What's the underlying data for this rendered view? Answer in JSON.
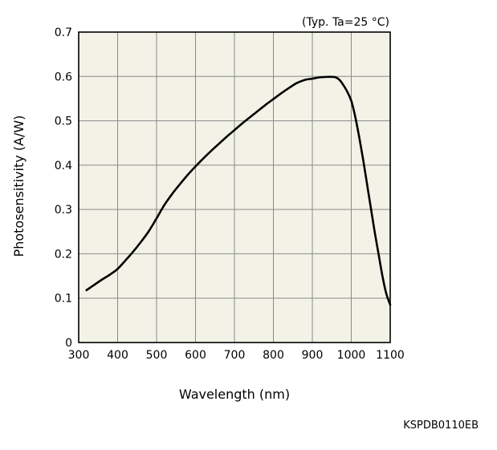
{
  "chart_data": {
    "type": "line",
    "title": "",
    "condition_note": "(Typ. Ta=25 °C)",
    "xlabel": "Wavelength (nm)",
    "ylabel": "Photosensitivity (A/W)",
    "xlim": [
      300,
      1100
    ],
    "ylim": [
      0,
      0.7
    ],
    "x_ticks": [
      300,
      400,
      500,
      600,
      700,
      800,
      900,
      1000,
      1100
    ],
    "y_ticks": [
      0,
      0.1,
      0.2,
      0.3,
      0.4,
      0.5,
      0.6,
      0.7
    ],
    "grid": true,
    "series": [
      {
        "color": "#000000",
        "x": [
          320,
          340,
          360,
          380,
          400,
          420,
          440,
          460,
          480,
          500,
          520,
          540,
          560,
          580,
          600,
          620,
          640,
          660,
          680,
          700,
          720,
          740,
          760,
          780,
          800,
          820,
          840,
          860,
          880,
          900,
          920,
          940,
          950,
          960,
          970,
          980,
          990,
          1000,
          1010,
          1020,
          1030,
          1040,
          1050,
          1060,
          1070,
          1080,
          1090,
          1100
        ],
        "y": [
          0.118,
          0.13,
          0.142,
          0.153,
          0.166,
          0.185,
          0.205,
          0.227,
          0.251,
          0.28,
          0.31,
          0.335,
          0.357,
          0.378,
          0.397,
          0.415,
          0.432,
          0.448,
          0.464,
          0.479,
          0.494,
          0.508,
          0.522,
          0.536,
          0.549,
          0.562,
          0.574,
          0.585,
          0.592,
          0.595,
          0.598,
          0.599,
          0.599,
          0.598,
          0.592,
          0.58,
          0.565,
          0.545,
          0.51,
          0.465,
          0.415,
          0.36,
          0.305,
          0.25,
          0.2,
          0.15,
          0.11,
          0.085
        ]
      }
    ]
  },
  "chart_code": "KSPDB0110EB",
  "colors": {
    "plot_background": "#f3f2e7",
    "grid": "#8a8a8a",
    "line": "#000000"
  }
}
